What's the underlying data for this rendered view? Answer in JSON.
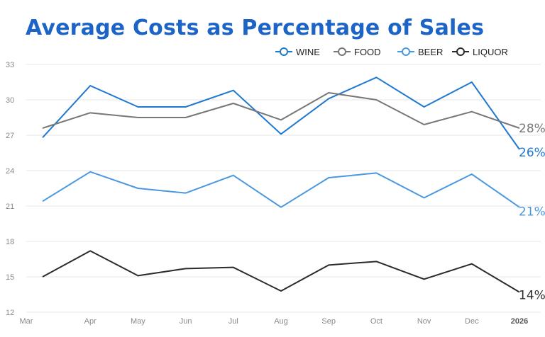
{
  "title": "Average Costs as Percentage of Sales",
  "chart_data": {
    "type": "line",
    "x": [
      "Mar",
      "Apr",
      "May",
      "Jun",
      "Jul",
      "Aug",
      "Sep",
      "Oct",
      "Nov",
      "Dec",
      "2026"
    ],
    "ylim": [
      12,
      33
    ],
    "yticks": [
      12,
      15,
      18,
      21,
      24,
      27,
      30,
      33
    ],
    "grid": true,
    "legend": "top-right",
    "series": [
      {
        "name": "WINE",
        "color": "#1f78d1",
        "values": [
          26.8,
          31.2,
          29.4,
          29.4,
          30.8,
          27.1,
          30.1,
          31.9,
          29.4,
          31.5,
          25.8
        ],
        "end_label": "26%"
      },
      {
        "name": "FOOD",
        "color": "#777777",
        "values": [
          27.6,
          28.9,
          28.5,
          28.5,
          29.7,
          28.3,
          30.6,
          30.0,
          27.9,
          29.0,
          27.6
        ],
        "end_label": "28%"
      },
      {
        "name": "BEER",
        "color": "#4a98e0",
        "values": [
          21.4,
          23.9,
          22.5,
          22.1,
          23.6,
          20.9,
          23.4,
          23.8,
          21.7,
          23.7,
          20.9
        ],
        "end_label": "21%"
      },
      {
        "name": "LIQUOR",
        "color": "#2b2b2b",
        "values": [
          15.0,
          17.2,
          15.1,
          15.7,
          15.8,
          13.8,
          16.0,
          16.3,
          14.8,
          16.1,
          13.7
        ],
        "end_label": "14%"
      }
    ]
  }
}
